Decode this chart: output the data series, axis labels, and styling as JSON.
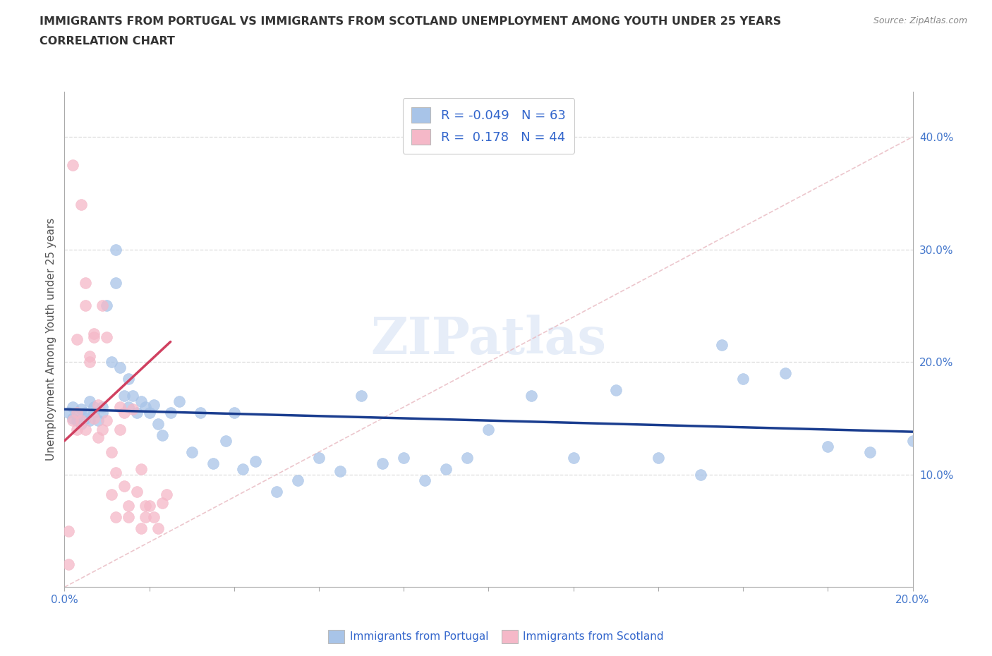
{
  "title_line1": "IMMIGRANTS FROM PORTUGAL VS IMMIGRANTS FROM SCOTLAND UNEMPLOYMENT AMONG YOUTH UNDER 25 YEARS",
  "title_line2": "CORRELATION CHART",
  "source_text": "Source: ZipAtlas.com",
  "ylabel": "Unemployment Among Youth under 25 years",
  "xlim": [
    0.0,
    0.2
  ],
  "ylim": [
    0.0,
    0.44
  ],
  "xticks": [
    0.0,
    0.05,
    0.1,
    0.15,
    0.2
  ],
  "xticklabels": [
    "0.0%",
    "",
    "",
    "",
    "20.0%"
  ],
  "yticks_right": [
    0.1,
    0.2,
    0.3,
    0.4
  ],
  "ytick_right_labels": [
    "10.0%",
    "20.0%",
    "30.0%",
    "40.0%"
  ],
  "portugal_color": "#a8c4e8",
  "scotland_color": "#f5b8c8",
  "portugal_R": "-0.049",
  "portugal_N": "63",
  "scotland_R": "0.178",
  "scotland_N": "44",
  "legend_label_portugal": "Immigrants from Portugal",
  "legend_label_scotland": "Immigrants from Scotland",
  "watermark": "ZIPatlas",
  "portugal_scatter_x": [
    0.001,
    0.002,
    0.002,
    0.003,
    0.003,
    0.004,
    0.004,
    0.005,
    0.005,
    0.006,
    0.006,
    0.007,
    0.007,
    0.008,
    0.009,
    0.009,
    0.01,
    0.011,
    0.012,
    0.012,
    0.013,
    0.014,
    0.015,
    0.015,
    0.016,
    0.017,
    0.018,
    0.019,
    0.02,
    0.021,
    0.022,
    0.023,
    0.025,
    0.027,
    0.03,
    0.032,
    0.035,
    0.038,
    0.04,
    0.042,
    0.045,
    0.05,
    0.055,
    0.06,
    0.065,
    0.07,
    0.075,
    0.08,
    0.085,
    0.09,
    0.095,
    0.1,
    0.11,
    0.12,
    0.13,
    0.14,
    0.15,
    0.155,
    0.16,
    0.17,
    0.18,
    0.19,
    0.2
  ],
  "portugal_scatter_y": [
    0.155,
    0.15,
    0.16,
    0.152,
    0.148,
    0.145,
    0.158,
    0.155,
    0.15,
    0.165,
    0.148,
    0.16,
    0.155,
    0.148,
    0.16,
    0.155,
    0.25,
    0.2,
    0.3,
    0.27,
    0.195,
    0.17,
    0.185,
    0.16,
    0.17,
    0.155,
    0.165,
    0.16,
    0.155,
    0.162,
    0.145,
    0.135,
    0.155,
    0.165,
    0.12,
    0.155,
    0.11,
    0.13,
    0.155,
    0.105,
    0.112,
    0.085,
    0.095,
    0.115,
    0.103,
    0.17,
    0.11,
    0.115,
    0.095,
    0.105,
    0.115,
    0.14,
    0.17,
    0.115,
    0.175,
    0.115,
    0.1,
    0.215,
    0.185,
    0.19,
    0.125,
    0.12,
    0.13
  ],
  "scotland_scatter_x": [
    0.001,
    0.001,
    0.002,
    0.002,
    0.003,
    0.003,
    0.003,
    0.004,
    0.004,
    0.005,
    0.005,
    0.005,
    0.006,
    0.006,
    0.007,
    0.007,
    0.007,
    0.008,
    0.008,
    0.009,
    0.009,
    0.01,
    0.01,
    0.011,
    0.011,
    0.012,
    0.012,
    0.013,
    0.013,
    0.014,
    0.014,
    0.015,
    0.015,
    0.016,
    0.017,
    0.018,
    0.018,
    0.019,
    0.019,
    0.02,
    0.021,
    0.022,
    0.023,
    0.024
  ],
  "scotland_scatter_y": [
    0.02,
    0.05,
    0.148,
    0.375,
    0.14,
    0.155,
    0.22,
    0.148,
    0.34,
    0.25,
    0.27,
    0.14,
    0.2,
    0.205,
    0.15,
    0.225,
    0.222,
    0.133,
    0.162,
    0.25,
    0.14,
    0.222,
    0.148,
    0.12,
    0.082,
    0.062,
    0.102,
    0.14,
    0.16,
    0.09,
    0.155,
    0.072,
    0.062,
    0.158,
    0.085,
    0.105,
    0.052,
    0.072,
    0.062,
    0.072,
    0.062,
    0.052,
    0.075,
    0.082
  ],
  "blue_trend_x": [
    0.0,
    0.2
  ],
  "blue_trend_y": [
    0.158,
    0.138
  ],
  "pink_trend_x": [
    0.0,
    0.025
  ],
  "pink_trend_y": [
    0.13,
    0.218
  ],
  "diag_line_x": [
    0.0,
    0.2
  ],
  "diag_line_y": [
    0.0,
    0.4
  ],
  "diag_line_color": "#e8b8c0",
  "blue_trend_color": "#1a3d8f",
  "pink_trend_color": "#d04060",
  "grid_color": "#dddddd",
  "tick_color": "#4477cc",
  "title_color": "#333333",
  "ylabel_color": "#555555",
  "source_color": "#888888"
}
